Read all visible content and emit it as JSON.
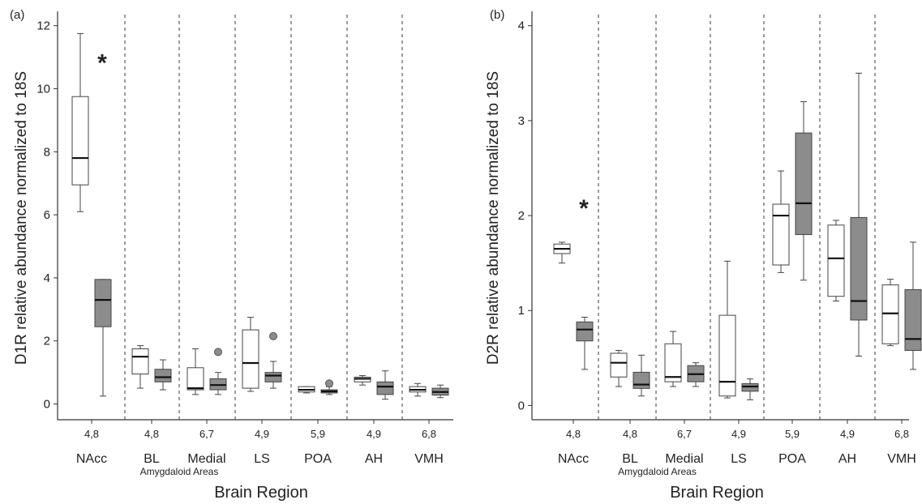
{
  "chart_data": [
    {
      "type": "boxplot",
      "panel_label": "(a)",
      "ylabel": "D1R relative abundance normalized to 18S",
      "xlabel": "Brain Region",
      "ylim": [
        -0.5,
        12.3
      ],
      "yticks": [
        0,
        2,
        4,
        6,
        8,
        10,
        12
      ],
      "grid": false,
      "group_note": "Amygdaloid Areas",
      "colors": {
        "group1": "#ffffff",
        "group2": "#8c8c8c"
      },
      "categories": [
        {
          "name": "NAcc",
          "n": "4,8",
          "significance": "*",
          "boxes": [
            {
              "group": "white",
              "min": 6.1,
              "q1": 6.95,
              "median": 7.8,
              "q3": 9.75,
              "max": 11.75,
              "outliers": []
            },
            {
              "group": "gray",
              "min": 0.25,
              "q1": 2.45,
              "median": 3.3,
              "q3": 3.95,
              "max": 3.95,
              "outliers": []
            }
          ]
        },
        {
          "name": "BL",
          "n": "4,8",
          "significance": "",
          "boxes": [
            {
              "group": "white",
              "min": 0.5,
              "q1": 0.95,
              "median": 1.5,
              "q3": 1.75,
              "max": 1.85,
              "outliers": []
            },
            {
              "group": "gray",
              "min": 0.45,
              "q1": 0.7,
              "median": 0.85,
              "q3": 1.1,
              "max": 1.4,
              "outliers": []
            }
          ]
        },
        {
          "name": "Medial",
          "n": "6,7",
          "significance": "",
          "boxes": [
            {
              "group": "white",
              "min": 0.3,
              "q1": 0.45,
              "median": 0.5,
              "q3": 1.15,
              "max": 1.75,
              "outliers": []
            },
            {
              "group": "gray",
              "min": 0.3,
              "q1": 0.45,
              "median": 0.6,
              "q3": 0.8,
              "max": 1.0,
              "outliers": [
                1.65
              ]
            }
          ]
        },
        {
          "name": "LS",
          "n": "4,9",
          "significance": "",
          "boxes": [
            {
              "group": "white",
              "min": 0.4,
              "q1": 0.5,
              "median": 1.3,
              "q3": 2.35,
              "max": 2.75,
              "outliers": []
            },
            {
              "group": "gray",
              "min": 0.5,
              "q1": 0.7,
              "median": 0.9,
              "q3": 1.0,
              "max": 1.35,
              "outliers": [
                2.15
              ]
            }
          ]
        },
        {
          "name": "POA",
          "n": "5,9",
          "significance": "",
          "boxes": [
            {
              "group": "white",
              "min": 0.35,
              "q1": 0.38,
              "median": 0.45,
              "q3": 0.55,
              "max": 0.55,
              "outliers": []
            },
            {
              "group": "gray",
              "min": 0.3,
              "q1": 0.35,
              "median": 0.4,
              "q3": 0.45,
              "max": 0.55,
              "outliers": [
                0.65
              ]
            }
          ]
        },
        {
          "name": "AH",
          "n": "4,9",
          "significance": "",
          "boxes": [
            {
              "group": "white",
              "min": 0.6,
              "q1": 0.7,
              "median": 0.8,
              "q3": 0.85,
              "max": 0.9,
              "outliers": []
            },
            {
              "group": "gray",
              "min": 0.15,
              "q1": 0.3,
              "median": 0.55,
              "q3": 0.7,
              "max": 1.05,
              "outliers": []
            }
          ]
        },
        {
          "name": "VMH",
          "n": "6,8",
          "significance": "",
          "boxes": [
            {
              "group": "white",
              "min": 0.25,
              "q1": 0.38,
              "median": 0.45,
              "q3": 0.55,
              "max": 0.65,
              "outliers": []
            },
            {
              "group": "gray",
              "min": 0.2,
              "q1": 0.28,
              "median": 0.38,
              "q3": 0.5,
              "max": 0.6,
              "outliers": []
            }
          ]
        }
      ]
    },
    {
      "type": "boxplot",
      "panel_label": "(b)",
      "ylabel": "D2R relative abundance normalized to 18S",
      "xlabel": "Brain Region",
      "ylim": [
        -0.15,
        4.1
      ],
      "yticks": [
        0,
        1,
        2,
        3,
        4
      ],
      "grid": false,
      "group_note": "Amygdaloid Areas",
      "colors": {
        "group1": "#ffffff",
        "group2": "#8c8c8c"
      },
      "categories": [
        {
          "name": "NAcc",
          "n": "4,8",
          "significance": "*",
          "boxes": [
            {
              "group": "white",
              "min": 1.5,
              "q1": 1.6,
              "median": 1.65,
              "q3": 1.7,
              "max": 1.72,
              "outliers": []
            },
            {
              "group": "gray",
              "min": 0.38,
              "q1": 0.68,
              "median": 0.8,
              "q3": 0.88,
              "max": 0.93,
              "outliers": []
            }
          ]
        },
        {
          "name": "BL",
          "n": "4,8",
          "significance": "",
          "boxes": [
            {
              "group": "white",
              "min": 0.2,
              "q1": 0.3,
              "median": 0.45,
              "q3": 0.55,
              "max": 0.58,
              "outliers": []
            },
            {
              "group": "gray",
              "min": 0.1,
              "q1": 0.18,
              "median": 0.22,
              "q3": 0.35,
              "max": 0.53,
              "outliers": []
            }
          ]
        },
        {
          "name": "Medial",
          "n": "6,7",
          "significance": "",
          "boxes": [
            {
              "group": "white",
              "min": 0.2,
              "q1": 0.25,
              "median": 0.3,
              "q3": 0.65,
              "max": 0.78,
              "outliers": []
            },
            {
              "group": "gray",
              "min": 0.2,
              "q1": 0.25,
              "median": 0.33,
              "q3": 0.42,
              "max": 0.45,
              "outliers": []
            }
          ]
        },
        {
          "name": "LS",
          "n": "4,9",
          "significance": "",
          "boxes": [
            {
              "group": "white",
              "min": 0.08,
              "q1": 0.1,
              "median": 0.25,
              "q3": 0.95,
              "max": 1.52,
              "outliers": []
            },
            {
              "group": "gray",
              "min": 0.06,
              "q1": 0.15,
              "median": 0.2,
              "q3": 0.23,
              "max": 0.28,
              "outliers": []
            }
          ]
        },
        {
          "name": "POA",
          "n": "5,9",
          "significance": "",
          "boxes": [
            {
              "group": "white",
              "min": 1.4,
              "q1": 1.48,
              "median": 2.0,
              "q3": 2.12,
              "max": 2.47,
              "outliers": []
            },
            {
              "group": "gray",
              "min": 1.32,
              "q1": 1.8,
              "median": 2.13,
              "q3": 2.87,
              "max": 3.2,
              "outliers": []
            }
          ]
        },
        {
          "name": "AH",
          "n": "4,9",
          "significance": "",
          "boxes": [
            {
              "group": "white",
              "min": 1.1,
              "q1": 1.15,
              "median": 1.55,
              "q3": 1.9,
              "max": 1.95,
              "outliers": []
            },
            {
              "group": "gray",
              "min": 0.52,
              "q1": 0.9,
              "median": 1.1,
              "q3": 1.98,
              "max": 3.5,
              "outliers": []
            }
          ]
        },
        {
          "name": "VMH",
          "n": "6,8",
          "significance": "",
          "boxes": [
            {
              "group": "white",
              "min": 0.63,
              "q1": 0.65,
              "median": 0.97,
              "q3": 1.27,
              "max": 1.33,
              "outliers": []
            },
            {
              "group": "gray",
              "min": 0.38,
              "q1": 0.58,
              "median": 0.7,
              "q3": 1.22,
              "max": 1.72,
              "outliers": []
            }
          ]
        }
      ]
    }
  ]
}
